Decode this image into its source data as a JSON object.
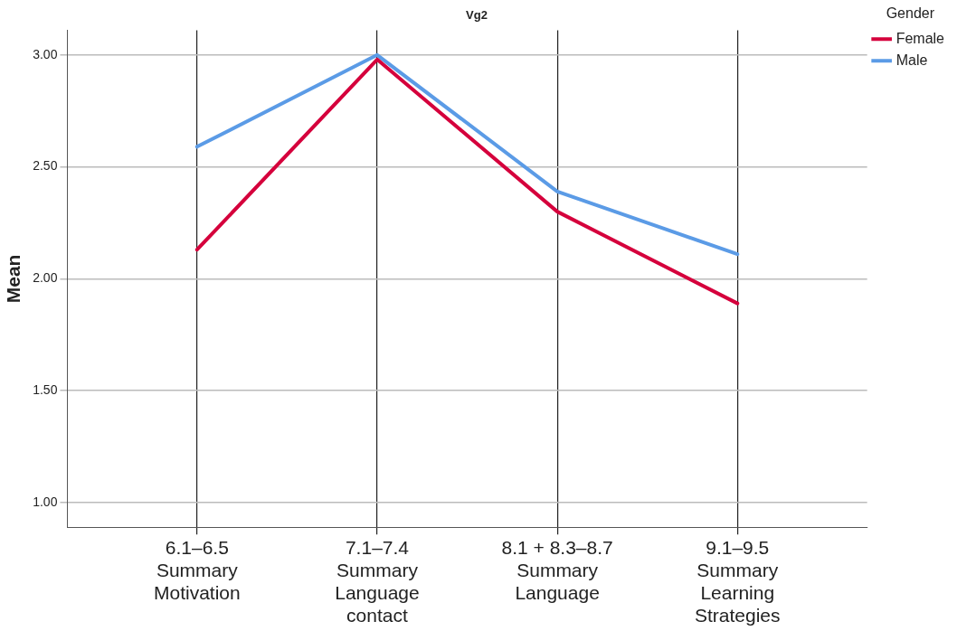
{
  "chart_data": {
    "type": "line",
    "title": "Vg2",
    "ylabel": "Mean",
    "legend_title": "Gender",
    "categories": [
      "6.1–6.5\nSummary\nMotivation",
      "7.1–7.4\nSummary\nLanguage\ncontact",
      "8.1 + 8.3–8.7\nSummary\nLanguage",
      "9.1–9.5\nSummary\nLearning\nStrategies"
    ],
    "series": [
      {
        "name": "Female",
        "color": "#d5003c",
        "values": [
          2.13,
          2.98,
          2.3,
          1.89
        ]
      },
      {
        "name": "Male",
        "color": "#5b9be6",
        "values": [
          2.59,
          3.0,
          2.39,
          2.11
        ]
      }
    ],
    "ylim": [
      0.89,
      3.11
    ],
    "yticks": [
      {
        "value": 1,
        "label": "1.00"
      },
      {
        "value": 1.5,
        "label": "1.50"
      },
      {
        "value": 2,
        "label": "2.00"
      },
      {
        "value": 2.5,
        "label": "2.50"
      },
      {
        "value": 3,
        "label": "3.00"
      }
    ],
    "grid": true,
    "legend": "top right",
    "marker": "none",
    "line_style": "solid"
  }
}
